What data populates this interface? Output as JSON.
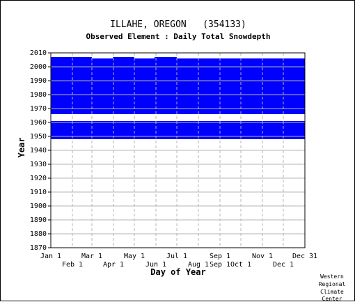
{
  "chart_data": {
    "type": "heatmap",
    "title": "ILLAHE, OREGON   (354133)",
    "subtitle": "Observed Element : Daily Total Snowdepth",
    "xlabel": "Day of Year",
    "ylabel": "Year",
    "xlim": [
      1,
      366
    ],
    "ylim": [
      1870,
      2010
    ],
    "grid": true,
    "y_ticks": [
      1870,
      1880,
      1890,
      1900,
      1910,
      1920,
      1930,
      1940,
      1950,
      1960,
      1970,
      1980,
      1990,
      2000,
      2010
    ],
    "x_ticks_top_row": [
      {
        "label": "Jan 1",
        "day": 1
      },
      {
        "label": "Mar 1",
        "day": 60
      },
      {
        "label": "May 1",
        "day": 121
      },
      {
        "label": "Jul 1",
        "day": 182
      },
      {
        "label": "Sep 1",
        "day": 244
      },
      {
        "label": "Nov 1",
        "day": 305
      },
      {
        "label": "Dec 31",
        "day": 366
      }
    ],
    "x_ticks_bottom_row": [
      {
        "label": "Feb 1",
        "day": 32
      },
      {
        "label": "Apr 1",
        "day": 91
      },
      {
        "label": "Jun 1",
        "day": 152
      },
      {
        "label": "Aug 1",
        "day": 213
      },
      {
        "label": "Sep 1",
        "day": 244
      },
      {
        "label": "Oct 1",
        "day": 274
      },
      {
        "label": "Dec 1",
        "day": 335
      }
    ],
    "data_color": "#0000ff",
    "series": [
      {
        "values": [
          {
            "start_day": 1,
            "end_day": 366,
            "from_year": 1948,
            "to_year": 1961
          },
          {
            "start_day": 1,
            "end_day": 366,
            "from_year": 1966,
            "to_year": 2006
          },
          {
            "start_day": 1,
            "end_day": 60,
            "from_year": 2006,
            "to_year": 2007
          },
          {
            "start_day": 90,
            "end_day": 121,
            "from_year": 2006,
            "to_year": 2007
          },
          {
            "start_day": 150,
            "end_day": 182,
            "from_year": 2006,
            "to_year": 2007
          }
        ]
      }
    ]
  },
  "credit": [
    "Western",
    "Regional",
    "Climate",
    "Center"
  ]
}
